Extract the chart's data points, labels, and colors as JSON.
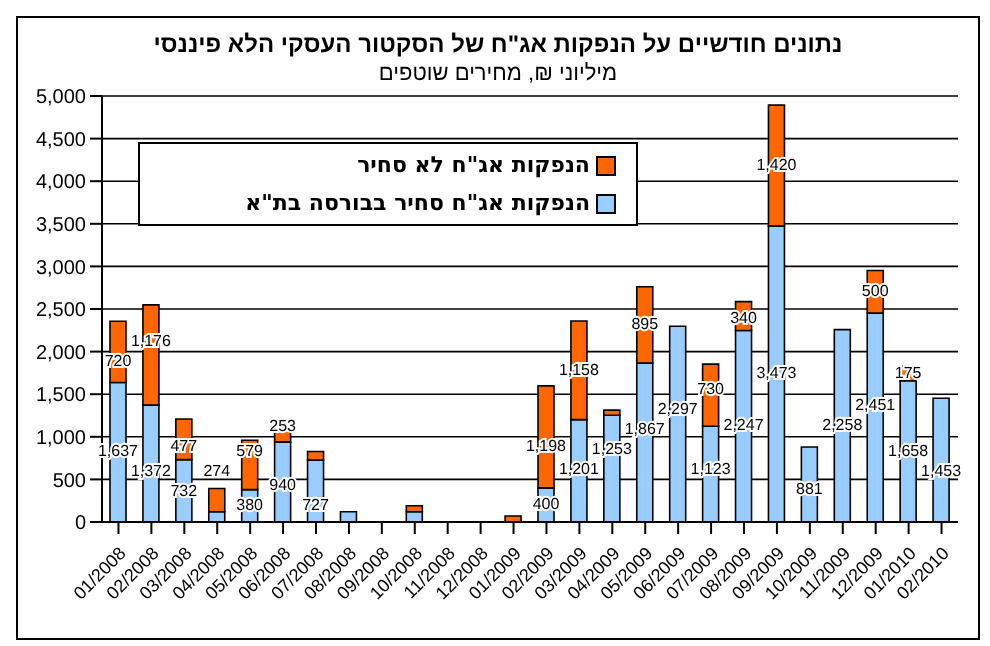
{
  "chart_data": {
    "type": "bar",
    "title": "נתונים חודשיים על הנפקות אג\"ח של הסקטור העסקי הלא פיננסי",
    "subtitle": "מיליוני ₪, מחירים שוטפים",
    "categories": [
      "01/2008",
      "02/2008",
      "03/2008",
      "04/2008",
      "05/2008",
      "06/2008",
      "07/2008",
      "08/2008",
      "09/2008",
      "10/2008",
      "11/2008",
      "12/2008",
      "01/2009",
      "02/2009",
      "03/2009",
      "04/2009",
      "05/2009",
      "06/2009",
      "07/2009",
      "08/2009",
      "09/2009",
      "10/2009",
      "11/2009",
      "12/2009",
      "01/2010",
      "02/2010"
    ],
    "stacked": true,
    "series": [
      {
        "name": "הנפקות אג\"ח סחיר בבורסה בת\"א",
        "color": "#99ccff",
        "values": [
          1637,
          1372,
          732,
          120,
          380,
          940,
          727,
          120,
          null,
          120,
          null,
          null,
          0,
          400,
          1201,
          1253,
          1867,
          2297,
          1123,
          2247,
          3473,
          881,
          2258,
          2451,
          1658,
          1453
        ],
        "value_labels": [
          "1,637",
          "1,372",
          "732",
          null,
          "380",
          "940",
          "727",
          null,
          null,
          null,
          null,
          null,
          null,
          "400",
          "1,201",
          "1,253",
          "1,867",
          "2,297",
          "1,123",
          "2,247",
          "3,473",
          "881",
          "2,258",
          "2,451",
          "1,658",
          "1,453"
        ]
      },
      {
        "name": "הנפקות אג\"ח לא סחיר",
        "color": "#ff6600",
        "values": [
          720,
          1176,
          477,
          274,
          579,
          253,
          100,
          null,
          null,
          70,
          null,
          null,
          70,
          1198,
          1158,
          60,
          895,
          null,
          730,
          340,
          1420,
          null,
          null,
          500,
          175,
          null
        ],
        "value_labels": [
          "720",
          "1,176",
          "477",
          "274",
          "579",
          "253",
          null,
          null,
          null,
          null,
          null,
          null,
          null,
          "1,198",
          "1,158",
          null,
          "895",
          null,
          "730",
          "340",
          "1,420",
          null,
          null,
          "500",
          "175",
          null
        ]
      }
    ],
    "ylim": [
      0,
      5000
    ],
    "yticks": [
      0,
      500,
      {
        "value": 1000,
        "label": "1,000"
      },
      {
        "value": 1500,
        "label": "1,500"
      },
      {
        "value": 2000,
        "label": "2,000"
      },
      {
        "value": 2500,
        "label": "2,500"
      },
      {
        "value": 3000,
        "label": "3,000"
      },
      {
        "value": 3500,
        "label": "3,500"
      },
      {
        "value": 4000,
        "label": "4,000"
      },
      {
        "value": 4500,
        "label": "4,500"
      },
      {
        "value": 5000,
        "label": "5,000"
      }
    ],
    "grid": "y",
    "legend": "top left"
  }
}
